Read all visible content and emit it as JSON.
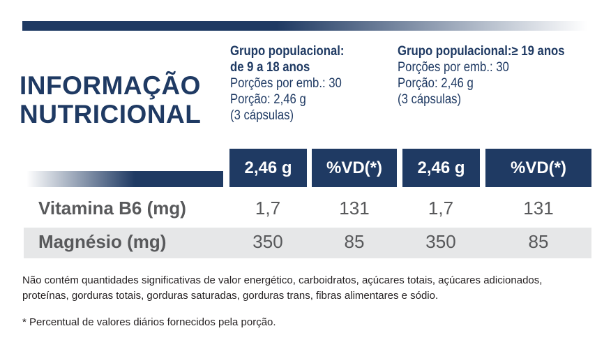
{
  "title": [
    "INFORMAÇÃO",
    "NUTRICIONAL"
  ],
  "groups": [
    {
      "heading": [
        "Grupo populacional:",
        "de 9 a 18 anos"
      ],
      "details": [
        "Porções por emb.: 30",
        "Porção: 2,46 g",
        "(3 cápsulas)"
      ]
    },
    {
      "heading": [
        "Grupo populacional:≥ 19 anos"
      ],
      "details": [
        "Porções por emb.: 30",
        "Porção: 2,46 g",
        "(3 cápsulas)"
      ]
    }
  ],
  "table": {
    "header": [
      "2,46 g",
      "%VD(*)",
      "2,46 g",
      "%VD(*)"
    ],
    "rows": [
      [
        "Vitamina B6 (mg)",
        "1,7",
        "131",
        "1,7",
        "131"
      ],
      [
        "Magnésio (mg)",
        "350",
        "85",
        "350",
        "85"
      ]
    ]
  },
  "footnotes": [
    "Não contém quantidades significativas de valor energético, carboidratos, açúcares totais, açúcares adicionados,",
    "proteínas, gorduras totais, gorduras saturadas, gorduras trans, fibras alimentares e sódio.",
    "* Percentual de valores diários fornecidos pela porção."
  ]
}
